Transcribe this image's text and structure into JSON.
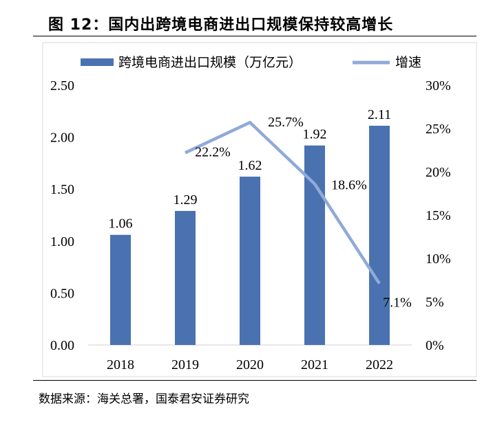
{
  "header": {
    "title": "图 12：国内出跨境电商进出口规模保持较高增长"
  },
  "footer": {
    "source": "数据来源：海关总署，国泰君安证券研究"
  },
  "chart_data": {
    "type": "bar",
    "categories": [
      "2018",
      "2019",
      "2020",
      "2021",
      "2022"
    ],
    "series": [
      {
        "name": "跨境电商进出口规模（万亿元）",
        "type": "bar",
        "axis": "left",
        "values": [
          1.06,
          1.29,
          1.62,
          1.92,
          2.11
        ],
        "labels": [
          "1.06",
          "1.29",
          "1.62",
          "1.92",
          "2.11"
        ],
        "color": "#4a72b0"
      },
      {
        "name": "增速",
        "type": "line",
        "axis": "right",
        "values": [
          null,
          22.2,
          25.7,
          18.6,
          7.1
        ],
        "labels": [
          "",
          "22.2%",
          "25.7%",
          "18.6%",
          "7.1%"
        ],
        "color": "#8faad8"
      }
    ],
    "y_left": {
      "min": 0,
      "max": 2.5,
      "ticks": [
        "0.00",
        "0.50",
        "1.00",
        "1.50",
        "2.00",
        "2.50"
      ]
    },
    "y_right": {
      "min": 0,
      "max": 30,
      "ticks": [
        "0%",
        "5%",
        "10%",
        "15%",
        "20%",
        "25%",
        "30%"
      ]
    },
    "grid": false,
    "legend": "top"
  }
}
